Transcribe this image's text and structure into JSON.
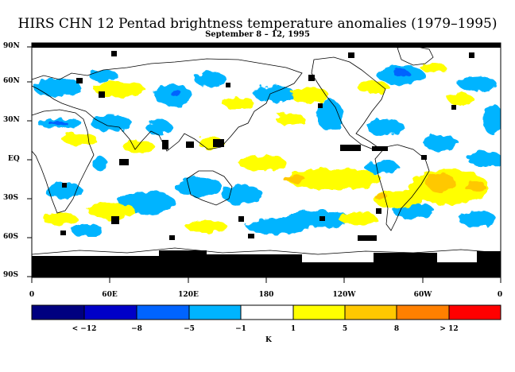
{
  "title": "HIRS CHN 12 Pentad brightness temperature anomalies (1979–1995)",
  "subtitle": "September 8 – 12, 1995",
  "lat_labels": [
    "90N",
    "60N",
    "30N",
    "EQ",
    "30S",
    "60S",
    "90S"
  ],
  "lon_labels": [
    "0",
    "60E",
    "120E",
    "180",
    "120W",
    "60W",
    "0"
  ],
  "colorbar": {
    "unit": "K",
    "tick_labels": [
      "< −12",
      "−8",
      "−5",
      "−1",
      "1",
      "5",
      "8",
      "> 12"
    ],
    "colors": [
      "#000080",
      "#0000c8",
      "#0064ff",
      "#00b4ff",
      "#ffffff",
      "#ffff00",
      "#ffc800",
      "#ff8000",
      "#ff0000"
    ]
  },
  "map": {
    "projection": "cylindrical equidistant",
    "lat_range": [
      -90,
      90
    ],
    "lon_range": [
      0,
      360
    ],
    "missing_color": "#000000",
    "coastline_color": "#000000"
  }
}
